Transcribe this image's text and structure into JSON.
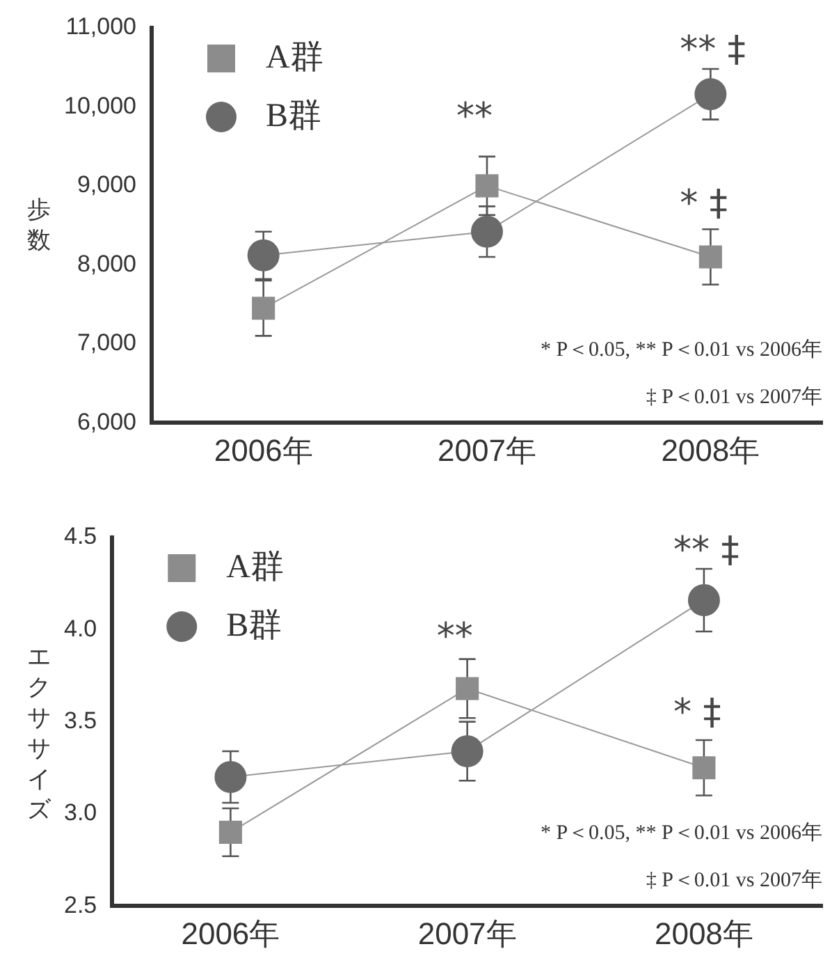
{
  "chart_data": [
    {
      "type": "line",
      "ylabel": "歩数",
      "categories": [
        "2006年",
        "2007年",
        "2008年"
      ],
      "series": [
        {
          "name": "A群",
          "color": "#8c8c8c",
          "marker": "square",
          "values": [
            7450,
            9000,
            8100
          ],
          "errors": [
            350,
            370,
            350
          ]
        },
        {
          "name": "B群",
          "color": "#6a6a6a",
          "marker": "circle",
          "values": [
            8120,
            8420,
            10160
          ],
          "errors": [
            300,
            320,
            320
          ]
        }
      ],
      "ylim": [
        6000,
        11000
      ],
      "yticks": [
        {
          "value": 6000,
          "label": "6,000"
        },
        {
          "value": 7000,
          "label": "7,000"
        },
        {
          "value": 8000,
          "label": "8,000"
        },
        {
          "value": 9000,
          "label": "9,000"
        },
        {
          "value": 10000,
          "label": "10,000"
        },
        {
          "value": 11000,
          "label": "11,000"
        }
      ],
      "legend": "top left",
      "annotations": [
        "**",
        "** ‡",
        "* ‡",
        "* P＜0.05, ** P＜0.01 vs 2006年",
        "‡ P＜0.01 vs 2007年"
      ]
    },
    {
      "type": "line",
      "ylabel": "エクササイズ",
      "categories": [
        "2006年",
        "2007年",
        "2008年"
      ],
      "series": [
        {
          "name": "A群",
          "color": "#8c8c8c",
          "marker": "square",
          "values": [
            2.9,
            3.68,
            3.25
          ],
          "errors": [
            0.13,
            0.16,
            0.15
          ]
        },
        {
          "name": "B群",
          "color": "#6a6a6a",
          "marker": "circle",
          "values": [
            3.2,
            3.34,
            4.16
          ],
          "errors": [
            0.14,
            0.16,
            0.17
          ]
        }
      ],
      "ylim": [
        2.5,
        4.5
      ],
      "yticks": [
        {
          "value": 2.5,
          "label": "2.5"
        },
        {
          "value": 3.0,
          "label": "3.0"
        },
        {
          "value": 3.5,
          "label": "3.5"
        },
        {
          "value": 4.0,
          "label": "4.0"
        },
        {
          "value": 4.5,
          "label": "4.5"
        }
      ],
      "legend": "top left",
      "annotations": [
        "**",
        "** ‡",
        "* ‡",
        "* P＜0.05, ** P＜0.01 vs 2006年",
        "‡ P＜0.01 vs 2007年"
      ]
    }
  ]
}
